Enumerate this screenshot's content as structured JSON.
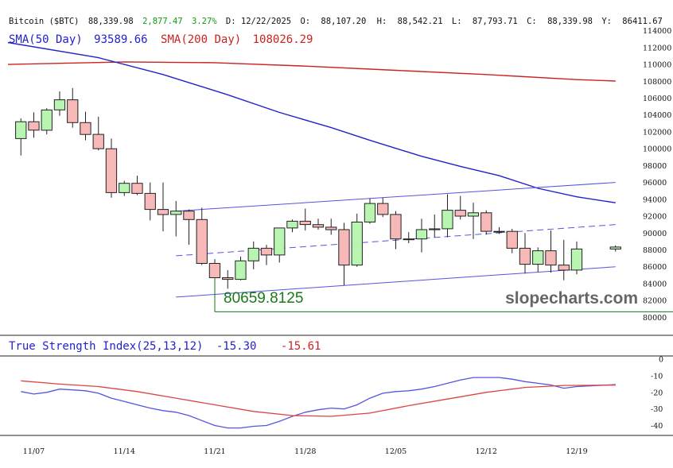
{
  "header": {
    "symbol": "Bitcoin ($BTC)",
    "last": "88,339.98",
    "change": "2,877.47",
    "change_pct": "3.27%",
    "date_label": "D: 12/22/2025",
    "open_label": "O:",
    "open": "88,107.20",
    "high_label": "H:",
    "high": "88,542.21",
    "low_label": "L:",
    "low": "87,793.71",
    "close_label": "C:",
    "close": "88,339.98",
    "y_label": "Y:",
    "y_value": "86411.67"
  },
  "legend": {
    "sma50_label": "SMA(50 Day)",
    "sma50_value": "93589.66",
    "sma200_label": "SMA(200 Day)",
    "sma200_value": "108026.29",
    "tsi_label": "True Strength Index(25,13,12)",
    "tsi_value": "-15.30",
    "tsi_signal_value": "-15.61"
  },
  "annotations": {
    "low_price_label": "80659.8125",
    "watermark": "slopecharts.com"
  },
  "colors": {
    "up_candle": "#b8f5b0",
    "down_candle": "#f7b8b8",
    "sma50": "#2222cc",
    "sma200": "#cc2222",
    "tsi": "#5555dd",
    "tsi_signal": "#dd4444",
    "channel": "#5555dd",
    "low_line": "#1a7a1a",
    "change_text": "#119911"
  },
  "chart_data": [
    {
      "type": "candlestick",
      "title": "Bitcoin ($BTC)",
      "ylim": [
        79000,
        115000
      ],
      "y_ticks": [
        80000,
        82000,
        84000,
        86000,
        88000,
        90000,
        92000,
        94000,
        96000,
        98000,
        100000,
        102000,
        104000,
        106000,
        108000,
        110000,
        112000,
        114000
      ],
      "x_tick_labels": [
        "11/07",
        "11/14",
        "11/21",
        "11/28",
        "12/05",
        "12/12",
        "12/19"
      ],
      "x_tick_dates": [
        "2025-11-07",
        "2025-11-14",
        "2025-11-21",
        "2025-11-28",
        "2025-12-05",
        "2025-12-12",
        "2025-12-19"
      ],
      "x_range": [
        "2025-11-05",
        "2025-12-23"
      ],
      "candles": [
        {
          "date": "2025-11-06",
          "open": 101200,
          "high": 103600,
          "low": 99200,
          "close": 103200
        },
        {
          "date": "2025-11-07",
          "open": 103200,
          "high": 104300,
          "low": 101300,
          "close": 102200
        },
        {
          "date": "2025-11-08",
          "open": 102200,
          "high": 104800,
          "low": 101700,
          "close": 104600
        },
        {
          "date": "2025-11-09",
          "open": 104600,
          "high": 106800,
          "low": 103900,
          "close": 105800
        },
        {
          "date": "2025-11-10",
          "open": 105800,
          "high": 107200,
          "low": 102500,
          "close": 103100
        },
        {
          "date": "2025-11-11",
          "open": 103100,
          "high": 104400,
          "low": 101000,
          "close": 101700
        },
        {
          "date": "2025-11-12",
          "open": 101700,
          "high": 103800,
          "low": 99800,
          "close": 100000
        },
        {
          "date": "2025-11-13",
          "open": 100000,
          "high": 101200,
          "low": 94200,
          "close": 94800
        },
        {
          "date": "2025-11-14",
          "open": 94800,
          "high": 96200,
          "low": 94400,
          "close": 95900
        },
        {
          "date": "2025-11-15",
          "open": 95900,
          "high": 96800,
          "low": 94500,
          "close": 94700
        },
        {
          "date": "2025-11-16",
          "open": 94700,
          "high": 96000,
          "low": 91500,
          "close": 92800
        },
        {
          "date": "2025-11-17",
          "open": 92800,
          "high": 96000,
          "low": 90200,
          "close": 92200
        },
        {
          "date": "2025-11-18",
          "open": 92200,
          "high": 93800,
          "low": 89600,
          "close": 92600
        },
        {
          "date": "2025-11-19",
          "open": 92600,
          "high": 92800,
          "low": 88600,
          "close": 91600
        },
        {
          "date": "2025-11-20",
          "open": 91600,
          "high": 93000,
          "low": 86200,
          "close": 86400
        },
        {
          "date": "2025-11-21",
          "open": 86400,
          "high": 86900,
          "low": 80660,
          "close": 84700
        },
        {
          "date": "2025-11-22",
          "open": 84700,
          "high": 85600,
          "low": 83400,
          "close": 84500
        },
        {
          "date": "2025-11-23",
          "open": 84500,
          "high": 87200,
          "low": 84400,
          "close": 86700
        },
        {
          "date": "2025-11-24",
          "open": 86700,
          "high": 89000,
          "low": 85700,
          "close": 88200
        },
        {
          "date": "2025-11-25",
          "open": 88200,
          "high": 88600,
          "low": 86200,
          "close": 87400
        },
        {
          "date": "2025-11-26",
          "open": 87400,
          "high": 90600,
          "low": 86500,
          "close": 90600
        },
        {
          "date": "2025-11-27",
          "open": 90600,
          "high": 91600,
          "low": 90100,
          "close": 91400
        },
        {
          "date": "2025-11-28",
          "open": 91400,
          "high": 92900,
          "low": 90300,
          "close": 91000
        },
        {
          "date": "2025-11-29",
          "open": 91000,
          "high": 91700,
          "low": 90400,
          "close": 90700
        },
        {
          "date": "2025-11-30",
          "open": 90700,
          "high": 91700,
          "low": 89800,
          "close": 90400
        },
        {
          "date": "2025-12-01",
          "open": 90400,
          "high": 91200,
          "low": 83800,
          "close": 86200
        },
        {
          "date": "2025-12-02",
          "open": 86200,
          "high": 92300,
          "low": 86000,
          "close": 91300
        },
        {
          "date": "2025-12-03",
          "open": 91300,
          "high": 94100,
          "low": 91100,
          "close": 93500
        },
        {
          "date": "2025-12-04",
          "open": 93500,
          "high": 94200,
          "low": 91900,
          "close": 92200
        },
        {
          "date": "2025-12-05",
          "open": 92200,
          "high": 92600,
          "low": 88100,
          "close": 89300
        },
        {
          "date": "2025-12-06",
          "open": 89300,
          "high": 90100,
          "low": 88800,
          "close": 89300
        },
        {
          "date": "2025-12-07",
          "open": 89300,
          "high": 91700,
          "low": 87700,
          "close": 90400
        },
        {
          "date": "2025-12-08",
          "open": 90400,
          "high": 92200,
          "low": 89500,
          "close": 90500
        },
        {
          "date": "2025-12-09",
          "open": 90500,
          "high": 94600,
          "low": 89500,
          "close": 92700
        },
        {
          "date": "2025-12-10",
          "open": 92700,
          "high": 94400,
          "low": 91600,
          "close": 92000
        },
        {
          "date": "2025-12-11",
          "open": 92000,
          "high": 93600,
          "low": 89300,
          "close": 92400
        },
        {
          "date": "2025-12-12",
          "open": 92400,
          "high": 92700,
          "low": 89800,
          "close": 90200
        },
        {
          "date": "2025-12-13",
          "open": 90200,
          "high": 90700,
          "low": 89900,
          "close": 90200
        },
        {
          "date": "2025-12-14",
          "open": 90200,
          "high": 90500,
          "low": 87600,
          "close": 88200
        },
        {
          "date": "2025-12-15",
          "open": 88200,
          "high": 90000,
          "low": 85200,
          "close": 86300
        },
        {
          "date": "2025-12-16",
          "open": 86300,
          "high": 88300,
          "low": 85400,
          "close": 87900
        },
        {
          "date": "2025-12-17",
          "open": 87900,
          "high": 90300,
          "low": 85300,
          "close": 86200
        },
        {
          "date": "2025-12-18",
          "open": 86200,
          "high": 89200,
          "low": 84400,
          "close": 85600
        },
        {
          "date": "2025-12-19",
          "open": 85600,
          "high": 89000,
          "low": 85100,
          "close": 88100
        },
        {
          "date": "2025-12-22",
          "open": 88107.2,
          "high": 88542.21,
          "low": 87793.71,
          "close": 88339.98
        }
      ],
      "sma50": [
        {
          "date": "2025-11-05",
          "value": 112600
        },
        {
          "date": "2025-11-12",
          "value": 110800
        },
        {
          "date": "2025-11-17",
          "value": 108800
        },
        {
          "date": "2025-11-22",
          "value": 106400
        },
        {
          "date": "2025-11-26",
          "value": 104300
        },
        {
          "date": "2025-11-30",
          "value": 102500
        },
        {
          "date": "2025-12-03",
          "value": 101000
        },
        {
          "date": "2025-12-07",
          "value": 99100
        },
        {
          "date": "2025-12-10",
          "value": 97900
        },
        {
          "date": "2025-12-13",
          "value": 96800
        },
        {
          "date": "2025-12-16",
          "value": 95300
        },
        {
          "date": "2025-12-19",
          "value": 94300
        },
        {
          "date": "2025-12-22",
          "value": 93590
        }
      ],
      "sma200": [
        {
          "date": "2025-11-05",
          "value": 110000
        },
        {
          "date": "2025-11-14",
          "value": 110300
        },
        {
          "date": "2025-11-21",
          "value": 110200
        },
        {
          "date": "2025-11-28",
          "value": 109800
        },
        {
          "date": "2025-12-05",
          "value": 109300
        },
        {
          "date": "2025-12-12",
          "value": 108800
        },
        {
          "date": "2025-12-19",
          "value": 108200
        },
        {
          "date": "2025-12-22",
          "value": 108026
        }
      ],
      "channel_lines": [
        {
          "style": "solid",
          "from": {
            "date": "2025-11-18",
            "value": 92600
          },
          "to": {
            "date": "2025-12-22",
            "value": 96000
          }
        },
        {
          "style": "dashed",
          "from": {
            "date": "2025-11-18",
            "value": 87300
          },
          "to": {
            "date": "2025-12-22",
            "value": 91000
          }
        },
        {
          "style": "solid",
          "from": {
            "date": "2025-11-18",
            "value": 82400
          },
          "to": {
            "date": "2025-12-22",
            "value": 86000
          }
        }
      ],
      "horizontal_lines": [
        {
          "value": 80660,
          "from_date": "2025-11-21",
          "label": "80659.8125"
        }
      ]
    },
    {
      "type": "line",
      "title": "True Strength Index(25,13,12)",
      "ylim": [
        -46,
        2
      ],
      "y_ticks": [
        0,
        -10,
        -20,
        -30,
        -40
      ],
      "series": [
        {
          "name": "TSI",
          "points": [
            {
              "date": "2025-11-06",
              "value": -19.5
            },
            {
              "date": "2025-11-07",
              "value": -21
            },
            {
              "date": "2025-11-08",
              "value": -20
            },
            {
              "date": "2025-11-09",
              "value": -18
            },
            {
              "date": "2025-11-10",
              "value": -18.5
            },
            {
              "date": "2025-11-11",
              "value": -19
            },
            {
              "date": "2025-11-12",
              "value": -20.5
            },
            {
              "date": "2025-11-13",
              "value": -23.5
            },
            {
              "date": "2025-11-14",
              "value": -25.5
            },
            {
              "date": "2025-11-15",
              "value": -27.5
            },
            {
              "date": "2025-11-16",
              "value": -29.5
            },
            {
              "date": "2025-11-17",
              "value": -31
            },
            {
              "date": "2025-11-18",
              "value": -32
            },
            {
              "date": "2025-11-19",
              "value": -34
            },
            {
              "date": "2025-11-20",
              "value": -37
            },
            {
              "date": "2025-11-21",
              "value": -40
            },
            {
              "date": "2025-11-22",
              "value": -41.5
            },
            {
              "date": "2025-11-23",
              "value": -41.5
            },
            {
              "date": "2025-11-24",
              "value": -40.5
            },
            {
              "date": "2025-11-25",
              "value": -40
            },
            {
              "date": "2025-11-26",
              "value": -37.5
            },
            {
              "date": "2025-11-27",
              "value": -34.5
            },
            {
              "date": "2025-11-28",
              "value": -32
            },
            {
              "date": "2025-11-29",
              "value": -30.5
            },
            {
              "date": "2025-11-30",
              "value": -29.5
            },
            {
              "date": "2025-12-01",
              "value": -30
            },
            {
              "date": "2025-12-02",
              "value": -27.5
            },
            {
              "date": "2025-12-03",
              "value": -23.5
            },
            {
              "date": "2025-12-04",
              "value": -20.5
            },
            {
              "date": "2025-12-05",
              "value": -19.5
            },
            {
              "date": "2025-12-06",
              "value": -19
            },
            {
              "date": "2025-12-07",
              "value": -18
            },
            {
              "date": "2025-12-08",
              "value": -16.5
            },
            {
              "date": "2025-12-09",
              "value": -14.5
            },
            {
              "date": "2025-12-10",
              "value": -12.5
            },
            {
              "date": "2025-12-11",
              "value": -11
            },
            {
              "date": "2025-12-12",
              "value": -11
            },
            {
              "date": "2025-12-13",
              "value": -11
            },
            {
              "date": "2025-12-14",
              "value": -12
            },
            {
              "date": "2025-12-15",
              "value": -13.5
            },
            {
              "date": "2025-12-16",
              "value": -14.5
            },
            {
              "date": "2025-12-17",
              "value": -15.5
            },
            {
              "date": "2025-12-18",
              "value": -17.5
            },
            {
              "date": "2025-12-19",
              "value": -16.5
            },
            {
              "date": "2025-12-22",
              "value": -15.3
            }
          ]
        },
        {
          "name": "Signal",
          "points": [
            {
              "date": "2025-11-06",
              "value": -13
            },
            {
              "date": "2025-11-09",
              "value": -15
            },
            {
              "date": "2025-11-12",
              "value": -16.5
            },
            {
              "date": "2025-11-15",
              "value": -19.5
            },
            {
              "date": "2025-11-18",
              "value": -23.5
            },
            {
              "date": "2025-11-21",
              "value": -27.5
            },
            {
              "date": "2025-11-24",
              "value": -31.5
            },
            {
              "date": "2025-11-27",
              "value": -34
            },
            {
              "date": "2025-11-30",
              "value": -34.5
            },
            {
              "date": "2025-12-03",
              "value": -32.5
            },
            {
              "date": "2025-12-06",
              "value": -28
            },
            {
              "date": "2025-12-09",
              "value": -24
            },
            {
              "date": "2025-12-12",
              "value": -20
            },
            {
              "date": "2025-12-15",
              "value": -17
            },
            {
              "date": "2025-12-18",
              "value": -15.8
            },
            {
              "date": "2025-12-22",
              "value": -15.61
            }
          ]
        }
      ]
    }
  ]
}
